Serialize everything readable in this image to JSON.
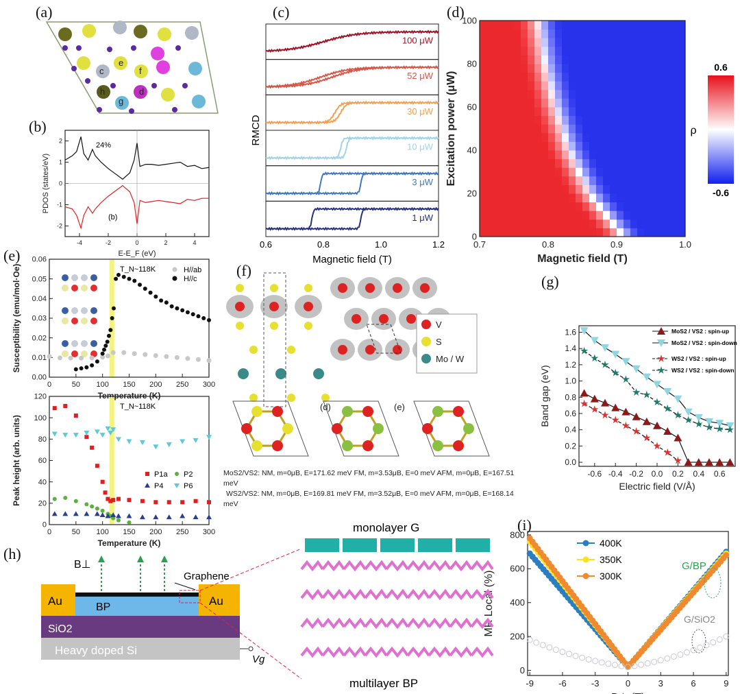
{
  "panel_labels": {
    "a": "(a)",
    "b": "(b)",
    "c": "(c)",
    "d": "(d)",
    "e": "(e)",
    "f": "(f)",
    "g": "(g)",
    "h": "(h)",
    "i": "(i)"
  },
  "crystal_atom_labels": [
    "c",
    "e",
    "f",
    "h",
    "d",
    "g"
  ],
  "structure_f": {
    "legend": [
      "V",
      "S",
      "Mo / W"
    ],
    "sub_labels": [
      "(d)",
      "(e)"
    ],
    "text_lines": [
      "MoS2/VS2: NM, m=0μB, E=171.62 meV  FM, m=3.53μB, E=0 meV  AFM, m=0μB, E=167.51",
      "meV",
      "WS2/VS2: NM, m=0μB, E=169.81 meV  FM, m=3.52μB, E=0 meV  AFM, m=0μB, E=168.14",
      "meV"
    ]
  },
  "device_h": {
    "labels": {
      "b": "B⊥",
      "graphene": "Graphene",
      "au_left": "Au",
      "au_right": "Au",
      "bp": "BP",
      "sio2": "SiO2",
      "si": "Heavy doped Si",
      "vg": "Vg",
      "mono": "monolayer G",
      "multi": "multilayer BP"
    }
  },
  "chart_data": [
    {
      "id": "b",
      "type": "line",
      "xlabel": "E-E_F (eV)",
      "ylabel": "PDOS (states/eV)",
      "xlim": [
        -5,
        5
      ],
      "ylim": [
        -2.5,
        2.5
      ],
      "xticks": [
        -4,
        -2,
        0,
        2,
        4
      ],
      "yticks": [
        -2,
        -1,
        0,
        1,
        2
      ],
      "annotations": [
        "24%",
        "(b)"
      ],
      "series": [
        {
          "color": "#111",
          "x": [
            -5,
            -4.5,
            -4.2,
            -3.9,
            -3.7,
            -3.4,
            -3.1,
            -2.9,
            -2.5,
            -2,
            -1.5,
            -1,
            -0.5,
            -0.2,
            0,
            0.2,
            0.6,
            1,
            1.5,
            2,
            2.5,
            3,
            3.5,
            4,
            4.5,
            5
          ],
          "y": [
            1.1,
            1.3,
            1.5,
            2.2,
            1.4,
            1.1,
            1.6,
            1.3,
            1.0,
            0.7,
            0.45,
            0.2,
            0.5,
            1.1,
            1.9,
            0.8,
            0.9,
            0.9,
            0.85,
            0.9,
            0.95,
            1.0,
            0.8,
            0.85,
            0.7,
            0.75
          ]
        },
        {
          "color": "#d22",
          "x": [
            -5,
            -4.5,
            -4.2,
            -3.9,
            -3.7,
            -3.4,
            -3.1,
            -2.9,
            -2.5,
            -2,
            -1.5,
            -1,
            -0.5,
            -0.2,
            0,
            0.2,
            0.6,
            1,
            1.5,
            2,
            2.5,
            3,
            3.5,
            4,
            4.5,
            5
          ],
          "y": [
            -1.1,
            -1.2,
            -1.5,
            -2.1,
            -1.5,
            -1.1,
            -1.4,
            -1.2,
            -0.9,
            -0.6,
            -0.35,
            -0.1,
            -0.4,
            -0.9,
            -1.9,
            -0.8,
            -0.9,
            -0.85,
            -0.8,
            -0.85,
            -0.9,
            -0.95,
            -0.75,
            -0.8,
            -0.7,
            -0.7
          ]
        }
      ]
    },
    {
      "id": "c",
      "type": "line",
      "xlabel": "Magnetic field (T)",
      "ylabel": "RMCD",
      "xlim": [
        0.6,
        1.2
      ],
      "xticks": [
        0.6,
        0.8,
        1.0,
        1.2
      ],
      "series": [
        {
          "name": "100 μW",
          "color": "#a0152a",
          "up": 0.8,
          "down": 0.8,
          "width": 0.06
        },
        {
          "name": "52 μW",
          "color": "#d95545",
          "up": 0.83,
          "down": 0.79,
          "width": 0.05
        },
        {
          "name": "30 μW",
          "color": "#f0a050",
          "up": 0.86,
          "down": 0.84,
          "width": 0.01
        },
        {
          "name": "10 μW",
          "color": "#9fd4e4",
          "up": 0.88,
          "down": 0.86,
          "width": 0.004
        },
        {
          "name": "3 μW",
          "color": "#3f78c0",
          "up": 0.93,
          "down": 0.79,
          "width": 0.003
        },
        {
          "name": "1 μW",
          "color": "#252f80",
          "up": 0.93,
          "down": 0.76,
          "width": 0.003
        }
      ]
    },
    {
      "id": "d",
      "type": "heatmap",
      "xlabel": "Magnetic field (T)",
      "ylabel": "Excitation power (μW)",
      "xlim": [
        0.7,
        1.0
      ],
      "ylim": [
        0,
        100
      ],
      "xticks": [
        0.7,
        0.8,
        0.9,
        1.0
      ],
      "yticks": [
        0,
        20,
        40,
        60,
        80,
        100
      ],
      "colorbar": {
        "label": "ρ",
        "max": "0.6",
        "min": "-0.6"
      },
      "boundary": {
        "power": [
          0,
          20,
          40,
          60,
          80,
          100
        ],
        "field": [
          0.91,
          0.86,
          0.83,
          0.81,
          0.795,
          0.785
        ]
      }
    },
    {
      "id": "e_top",
      "type": "scatter",
      "xlabel": "Temperature (K)",
      "ylabel": "Susceptibility (emu/mol·Oe)",
      "xlim": [
        0,
        300
      ],
      "ylim": [
        0,
        0.06
      ],
      "xticks": [
        0,
        50,
        100,
        150,
        200,
        250,
        300
      ],
      "yticks": [
        0.0,
        0.01,
        0.02,
        0.03,
        0.04,
        0.05,
        0.06
      ],
      "annotation": "T_N~118K",
      "series": [
        {
          "name": "H//ab",
          "color": "#c8c8c8",
          "x": [
            0,
            20,
            40,
            60,
            80,
            100,
            110,
            120,
            140,
            160,
            180,
            200,
            220,
            240,
            260,
            280,
            300
          ],
          "y": [
            0.0105,
            0.0098,
            0.0097,
            0.0097,
            0.0098,
            0.0102,
            0.0108,
            0.0125,
            0.0125,
            0.012,
            0.0115,
            0.011,
            0.0105,
            0.01,
            0.0095,
            0.009,
            0.0085
          ]
        },
        {
          "name": "H//c",
          "color": "#111",
          "x": [
            50,
            60,
            70,
            80,
            90,
            100,
            103,
            106,
            109,
            112,
            115,
            118,
            121,
            125,
            130,
            140,
            150,
            160,
            170,
            180,
            190,
            200,
            210,
            220,
            230,
            240,
            250,
            260,
            270,
            280,
            290,
            300
          ],
          "y": [
            0.004,
            0.0045,
            0.005,
            0.006,
            0.008,
            0.012,
            0.014,
            0.016,
            0.018,
            0.021,
            0.024,
            0.03,
            0.035,
            0.05,
            0.052,
            0.051,
            0.05,
            0.049,
            0.047,
            0.045,
            0.043,
            0.041,
            0.039,
            0.038,
            0.036,
            0.035,
            0.034,
            0.033,
            0.032,
            0.031,
            0.03,
            0.029
          ]
        }
      ]
    },
    {
      "id": "e_bottom",
      "type": "scatter",
      "xlabel": "Temperature (K)",
      "ylabel": "Peak height (arb. units)",
      "xlim": [
        0,
        300
      ],
      "ylim": [
        0,
        120
      ],
      "xticks": [
        0,
        50,
        100,
        150,
        200,
        250,
        300
      ],
      "yticks": [
        0,
        20,
        40,
        60,
        80,
        100,
        120
      ],
      "annotation": "T_N~118K",
      "series": [
        {
          "name": "P1a",
          "color": "#e02020",
          "marker": "square",
          "x": [
            10,
            30,
            50,
            70,
            80,
            90,
            100,
            105,
            110,
            115,
            120,
            130,
            150,
            175,
            200,
            225,
            250,
            275,
            300
          ],
          "y": [
            109,
            111,
            102,
            82,
            72,
            55,
            40,
            30,
            24,
            22,
            23,
            24,
            23,
            22,
            21,
            21,
            21,
            22,
            21
          ]
        },
        {
          "name": "P2",
          "color": "#5cb040",
          "marker": "circle",
          "x": [
            10,
            30,
            50,
            70,
            80,
            90,
            100,
            110,
            115,
            120,
            130,
            150
          ],
          "y": [
            24,
            25,
            22,
            19,
            17,
            15,
            13,
            10,
            8,
            6,
            4,
            2
          ]
        },
        {
          "name": "P4",
          "color": "#2a3f90",
          "marker": "triangle",
          "x": [
            10,
            30,
            50,
            70,
            90,
            100,
            110,
            120,
            130,
            150,
            175,
            200,
            225,
            250,
            275,
            300
          ],
          "y": [
            10,
            10,
            10,
            10,
            10,
            9,
            8,
            9,
            8,
            8,
            7,
            7,
            7,
            8,
            7,
            7
          ]
        },
        {
          "name": "P6",
          "color": "#5cc8d8",
          "marker": "triangle-down",
          "x": [
            10,
            30,
            50,
            70,
            90,
            100,
            110,
            115,
            120,
            130,
            150,
            175,
            200,
            225,
            250,
            275,
            300
          ],
          "y": [
            85,
            84,
            84,
            86,
            87,
            84,
            90,
            86,
            89,
            80,
            78,
            77,
            73,
            75,
            78,
            79,
            82
          ]
        }
      ]
    },
    {
      "id": "g",
      "type": "line",
      "xlabel": "Electric field (V/Å)",
      "ylabel": "Band gap (eV)",
      "xlim": [
        -0.75,
        0.75
      ],
      "ylim": [
        -0.05,
        1.68
      ],
      "xticks": [
        -0.6,
        -0.4,
        -0.2,
        0.0,
        0.2,
        0.4,
        0.6
      ],
      "yticks": [
        0.0,
        0.2,
        0.4,
        0.6,
        0.8,
        1.0,
        1.2,
        1.4,
        1.6
      ],
      "x": [
        -0.7,
        -0.6,
        -0.5,
        -0.4,
        -0.3,
        -0.2,
        -0.1,
        0.0,
        0.1,
        0.2,
        0.3,
        0.4,
        0.5,
        0.6,
        0.7
      ],
      "series": [
        {
          "name": "MoS2 / VS2 : spin-up",
          "color": "#8b1a1a",
          "marker": "triangle",
          "dash": false,
          "y": [
            0.85,
            0.78,
            0.73,
            0.67,
            0.62,
            0.56,
            0.5,
            0.45,
            0.38,
            0.3,
            0,
            0,
            0,
            0,
            0
          ]
        },
        {
          "name": "MoS2 / VS2 : spin-down",
          "color": "#8fd6e0",
          "marker": "triangle-down",
          "dash": false,
          "y": [
            1.62,
            1.5,
            1.41,
            1.33,
            1.24,
            1.15,
            1.05,
            0.96,
            0.87,
            0.78,
            0.62,
            0.55,
            0.5,
            0.48,
            0.45
          ]
        },
        {
          "name": "WS2 / VS2 : spin-up",
          "color": "#e03030",
          "marker": "star",
          "dash": true,
          "y": [
            0.72,
            0.65,
            0.58,
            0.52,
            0.45,
            0.38,
            0.3,
            0.2,
            0.12,
            0.02,
            null,
            null,
            null,
            null,
            null
          ]
        },
        {
          "name": "WS2 / VS2 : spin-down",
          "color": "#1f7a6a",
          "marker": "star",
          "dash": true,
          "y": [
            1.37,
            1.28,
            1.2,
            1.1,
            1.02,
            0.86,
            0.83,
            0.74,
            0.66,
            0.58,
            0.52,
            0.47,
            0.43,
            0.41,
            0.4
          ]
        }
      ]
    },
    {
      "id": "i",
      "type": "scatter",
      "xlabel": "B⊥ (T)",
      "ylabel": "MR Local (%)",
      "xlim": [
        -9.2,
        9.2
      ],
      "ylim": [
        -30,
        820
      ],
      "xticks": [
        -9,
        -6,
        -3,
        0,
        3,
        6,
        9
      ],
      "yticks": [
        0,
        200,
        400,
        600,
        800
      ],
      "annotations": [
        "G/BP",
        "G/SiO2"
      ],
      "series": [
        {
          "name": "400K",
          "color": "#2a7fc0",
          "slope": 78,
          "ends": [
            690,
            700
          ]
        },
        {
          "name": "350K",
          "color": "#ffe020",
          "slope": 80,
          "ends": [
            760,
            690
          ]
        },
        {
          "name": "300K",
          "color": "#f08a30",
          "slope": 82,
          "ends": [
            780,
            680
          ]
        },
        {
          "name": "G/SiO2",
          "color": "#c8c8d0",
          "slope": 20,
          "ends": [
            180,
            200
          ]
        }
      ]
    }
  ]
}
